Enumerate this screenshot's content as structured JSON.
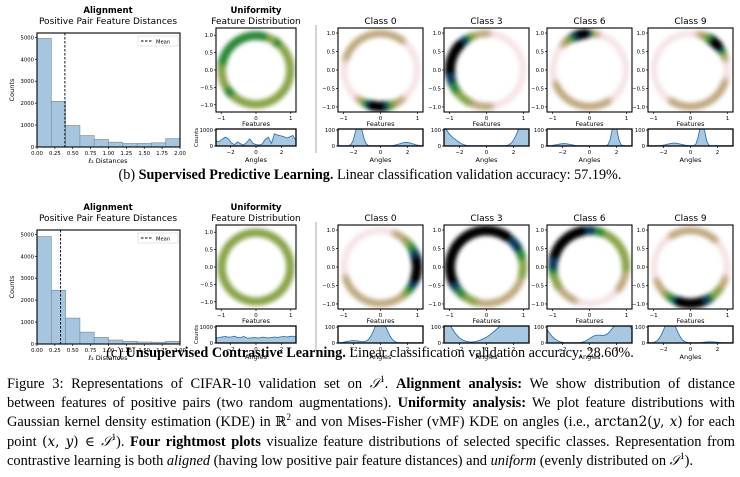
{
  "figure": {
    "rows": [
      {
        "id": "supervised",
        "caption_prefix": "(b) ",
        "caption_bold": "Supervised Predictive Learning.",
        "caption_rest": " Linear classification validation accuracy: 57.19%.",
        "alignment": {
          "title": "Alignment",
          "subtitle": "Positive Pair Feature Distances",
          "legend": "Mean",
          "mean": 0.39,
          "counts": [
            4950,
            2080,
            980,
            520,
            340,
            220,
            160,
            160,
            190,
            380
          ]
        },
        "uniformity": {
          "title": "Uniformity",
          "subtitle": "Feature Distribution",
          "angle_density": [
            300,
            250,
            400,
            520,
            430,
            180,
            80,
            230,
            130,
            60,
            220,
            420,
            150,
            80,
            60,
            120,
            380,
            520,
            150,
            720,
            640,
            600,
            560,
            470,
            540,
            620,
            330
          ]
        },
        "classes": [
          {
            "label": "Class 0",
            "peak_angle": -1.6,
            "spread": 0.25,
            "bg_peak": [
              1.9,
              0.15
            ]
          },
          {
            "label": "Class 3",
            "peak_angle": 2.75,
            "spread": 0.45,
            "bg_peak": [
              -2.6,
              0.3
            ]
          },
          {
            "label": "Class 6",
            "peak_angle": 1.85,
            "spread": 0.2,
            "bg_peak": [
              -1.9,
              0.1
            ]
          },
          {
            "label": "Class 9",
            "peak_angle": 0.85,
            "spread": 0.2,
            "bg_peak": [
              -1.2,
              0.12
            ]
          }
        ]
      },
      {
        "id": "unsupervised",
        "caption_prefix": "(c) ",
        "caption_bold": "Unsupervised Contrastive Learning.",
        "caption_rest": " Linear classification validation accuracy: 28.60%.",
        "alignment": {
          "title": "Alignment",
          "subtitle": "Positive Pair Feature Distances",
          "legend": "Mean",
          "mean": 0.33,
          "counts": [
            4900,
            2450,
            1180,
            540,
            300,
            180,
            120,
            90,
            80,
            120
          ]
        },
        "uniformity": {
          "title": "Uniformity",
          "subtitle": "Feature Distribution",
          "angle_density": [
            300,
            320,
            360,
            380,
            340,
            360,
            400,
            330,
            310,
            380,
            300,
            280,
            320,
            310,
            290,
            340,
            330,
            300,
            320,
            350,
            330,
            360,
            390,
            360,
            380,
            400,
            360
          ]
        },
        "classes": [
          {
            "label": "Class 0",
            "peak_angle": 0.0,
            "spread": 0.45,
            "bg_peak": [
              -2.0,
              0.1
            ]
          },
          {
            "label": "Class 3",
            "peak_angle": 2.0,
            "spread": 1.2,
            "bg_peak": [
              -3.0,
              0.4
            ]
          },
          {
            "label": "Class 6",
            "peak_angle": 2.4,
            "spread": 0.7,
            "bg_peak": [
              0.5,
              0.3
            ]
          },
          {
            "label": "Class 9",
            "peak_angle": -1.5,
            "spread": 0.45,
            "bg_peak": [
              1.5,
              0.05
            ]
          }
        ]
      }
    ],
    "axes": {
      "hist_xlabel": "ℓ₂ Distances",
      "hist_ylabel": "Counts",
      "hist_xticks": [
        "0.00",
        "0.25",
        "0.50",
        "0.75",
        "1.00",
        "1.25",
        "1.50",
        "1.75",
        "2.00"
      ],
      "hist_yticks": [
        "0",
        "1000",
        "2000",
        "3000",
        "4000",
        "5000"
      ],
      "kde_xlabel": "Features",
      "kde_xticks": [
        "−1",
        "0",
        "1"
      ],
      "kde_yticks": [
        "1.0",
        "0.5",
        "0.0",
        "−0.5",
        "−1.0"
      ],
      "angle_xlabel": "Angles",
      "angle_ylabel": "Counts",
      "angle_xticks": [
        "−2",
        "0",
        "2"
      ],
      "angle_yticks_uniformity": [
        "0",
        "1000"
      ],
      "angle_yticks_class": [
        "0",
        "100"
      ]
    },
    "caption": {
      "label": "Figure 3:",
      "lines": [
        [
          {
            "t": "Figure 3:  Representations of CIFAR-10 validation set on ",
            "s": "n"
          },
          {
            "t": "𝒮",
            "s": "m"
          },
          {
            "t": "1",
            "s": "sup"
          },
          {
            "t": ".  ",
            "s": "n"
          },
          {
            "t": "Alignment analysis:",
            "s": "b"
          },
          {
            "t": " We show distribution of distance",
            "s": "n"
          }
        ],
        [
          {
            "t": "between features of positive pairs (two random augmentations). ",
            "s": "n"
          },
          {
            "t": "Uniformity analysis:",
            "s": "b"
          },
          {
            "t": " We plot feature distributions with",
            "s": "n"
          }
        ],
        [
          {
            "t": "Gaussian kernel density estimation (KDE) in ",
            "s": "n"
          },
          {
            "t": "ℝ",
            "s": "r"
          },
          {
            "t": "2",
            "s": "sup"
          },
          {
            "t": " and von Mises-Fisher (vMF) KDE on angles (i.e., ",
            "s": "n"
          },
          {
            "t": "arctan2(",
            "s": "r"
          },
          {
            "t": "y",
            "s": "m"
          },
          {
            "t": ", ",
            "s": "r"
          },
          {
            "t": "x",
            "s": "m"
          },
          {
            "t": ")",
            "s": "r"
          },
          {
            "t": " for each",
            "s": "n"
          }
        ],
        [
          {
            "t": "point ",
            "s": "n"
          },
          {
            "t": "(",
            "s": "r"
          },
          {
            "t": "x",
            "s": "m"
          },
          {
            "t": ", ",
            "s": "r"
          },
          {
            "t": "y",
            "s": "m"
          },
          {
            "t": ") ∈ ",
            "s": "r"
          },
          {
            "t": "𝒮",
            "s": "m"
          },
          {
            "t": "1",
            "s": "sup"
          },
          {
            "t": "). ",
            "s": "n"
          },
          {
            "t": "Four rightmost plots",
            "s": "b"
          },
          {
            "t": " visualize feature distributions of selected specific classes. Representation from",
            "s": "n"
          }
        ],
        [
          {
            "t": "contrastive learning is both ",
            "s": "n"
          },
          {
            "t": "aligned",
            "s": "i"
          },
          {
            "t": " (having low positive pair feature distances) and ",
            "s": "n"
          },
          {
            "t": "uniform",
            "s": "i"
          },
          {
            "t": " (evenly distributed on ",
            "s": "n"
          },
          {
            "t": "𝒮",
            "s": "m"
          },
          {
            "t": "1",
            "s": "sup"
          },
          {
            "t": ").",
            "s": "n"
          }
        ]
      ]
    },
    "colors": {
      "bar_fill": "#a6c6e0",
      "bar_edge": "#7f8f9b",
      "line": "#2e75b6",
      "kde_fill": "#a8c8e2",
      "divider": "#c0c0c0"
    }
  }
}
